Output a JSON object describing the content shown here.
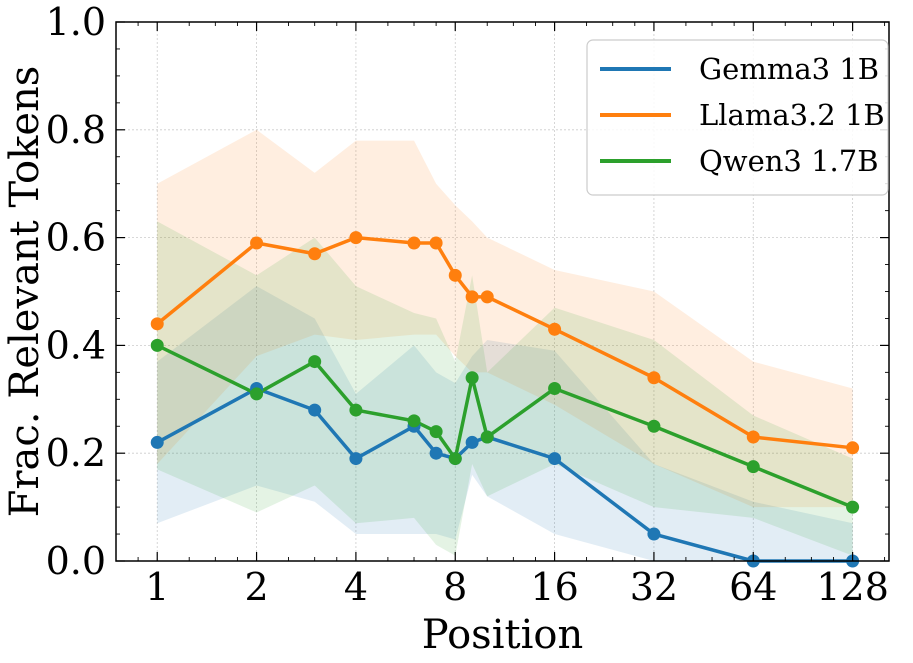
{
  "chart_data": {
    "type": "line",
    "title": "",
    "xlabel": "Position",
    "ylabel": "Frac. Relevant Tokens",
    "x_scale": "log2",
    "xlim": [
      0.75,
      165
    ],
    "ylim": [
      0.0,
      1.0
    ],
    "x_ticks": [
      1,
      2,
      4,
      8,
      16,
      32,
      64,
      128
    ],
    "x_tick_labels": [
      "1",
      "2",
      "4",
      "8",
      "16",
      "32",
      "64",
      "128"
    ],
    "y_ticks": [
      0.0,
      0.2,
      0.4,
      0.6,
      0.8,
      1.0
    ],
    "y_tick_labels": [
      "0.0",
      "0.2",
      "0.4",
      "0.6",
      "0.8",
      "1.0"
    ],
    "grid": true,
    "legend_position": "top-right",
    "x": [
      1,
      2,
      3,
      4,
      6,
      7,
      8,
      9,
      10,
      16,
      32,
      64,
      128
    ],
    "series": [
      {
        "name": "Gemma3 1B",
        "color": "#1f77b4",
        "values": [
          0.22,
          0.32,
          0.28,
          0.19,
          0.25,
          0.2,
          0.19,
          0.22,
          0.23,
          0.19,
          0.05,
          0.0,
          0.0
        ],
        "lower": [
          0.07,
          0.14,
          0.11,
          0.05,
          0.05,
          0.05,
          0.04,
          0.16,
          0.12,
          0.05,
          0.0,
          0.0,
          0.0
        ],
        "upper": [
          0.37,
          0.51,
          0.45,
          0.31,
          0.4,
          0.35,
          0.33,
          0.38,
          0.41,
          0.39,
          0.18,
          0.11,
          0.07
        ]
      },
      {
        "name": "Llama3.2 1B",
        "color": "#ff7f0e",
        "values": [
          0.44,
          0.59,
          0.57,
          0.6,
          0.59,
          0.59,
          0.53,
          0.49,
          0.49,
          0.43,
          0.34,
          0.23,
          0.21
        ],
        "lower": [
          0.18,
          0.38,
          0.42,
          0.41,
          0.42,
          0.42,
          0.38,
          0.35,
          0.35,
          0.29,
          0.18,
          0.1,
          0.1
        ],
        "upper": [
          0.7,
          0.8,
          0.72,
          0.78,
          0.78,
          0.7,
          0.66,
          0.63,
          0.6,
          0.54,
          0.5,
          0.37,
          0.32
        ]
      },
      {
        "name": "Qwen3 1.7B",
        "color": "#2ca02c",
        "values": [
          0.4,
          0.31,
          0.37,
          0.28,
          0.26,
          0.24,
          0.19,
          0.34,
          0.23,
          0.32,
          0.25,
          0.175,
          0.1
        ],
        "lower": [
          0.17,
          0.09,
          0.14,
          0.07,
          0.08,
          0.03,
          0.01,
          0.18,
          0.12,
          0.18,
          0.1,
          0.08,
          0.01
        ],
        "upper": [
          0.63,
          0.53,
          0.6,
          0.51,
          0.46,
          0.45,
          0.37,
          0.53,
          0.35,
          0.47,
          0.41,
          0.27,
          0.19
        ]
      }
    ]
  }
}
